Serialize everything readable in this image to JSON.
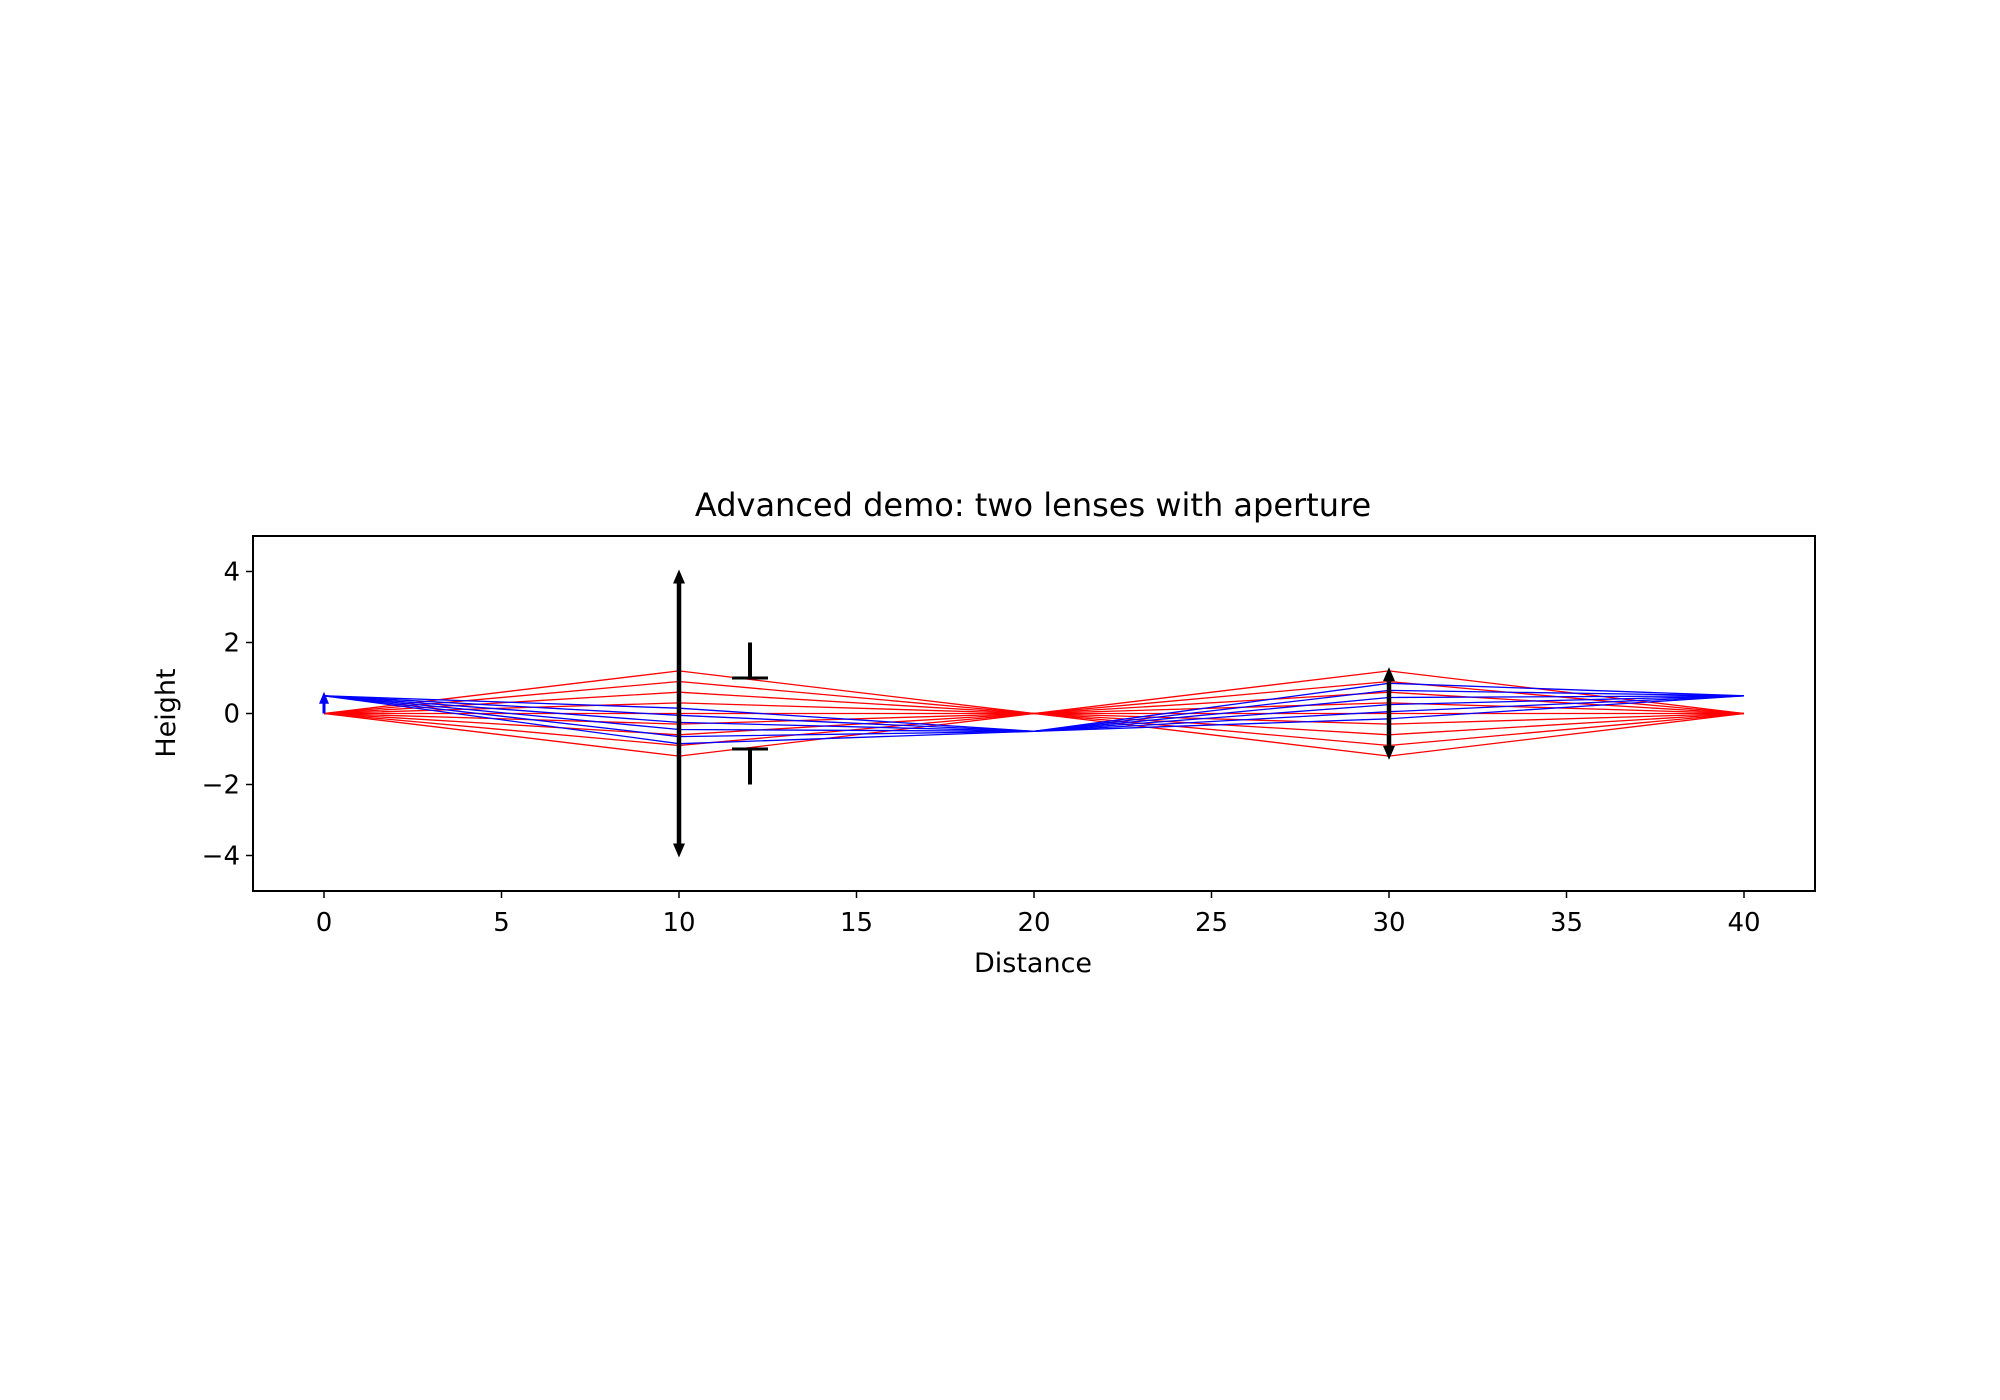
{
  "chart_data": {
    "type": "line",
    "title": "Advanced demo: two lenses with aperture",
    "xlabel": "Distance",
    "ylabel": "Height",
    "xlim": [
      -2,
      42
    ],
    "ylim": [
      -5,
      5
    ],
    "xticks": [
      0,
      5,
      10,
      15,
      20,
      25,
      30,
      35,
      40
    ],
    "yticks": [
      -4,
      -2,
      0,
      2,
      4
    ],
    "grid": false,
    "colors": {
      "axial_rays": "#ff0000",
      "principal_rays": "#0000ff",
      "elements": "#000000"
    },
    "object": {
      "x": 0,
      "height": 0.5
    },
    "lenses": [
      {
        "x": 10,
        "half_height": 4
      },
      {
        "x": 30,
        "half_height": 1.25
      }
    ],
    "aperture": {
      "x": 12,
      "half_diameter": 1,
      "outer_half_height": 2
    },
    "series": [
      {
        "color": "#ff0000",
        "x": [
          0,
          10,
          20,
          30,
          40
        ],
        "rays": [
          [
            0,
            1.2,
            0,
            -1.2,
            0
          ],
          [
            0,
            0.9,
            0,
            -0.9,
            0
          ],
          [
            0,
            0.6,
            0,
            -0.6,
            0
          ],
          [
            0,
            0.3,
            0,
            -0.3,
            0
          ],
          [
            0,
            0.0,
            0,
            0.0,
            0
          ],
          [
            0,
            -0.3,
            0,
            0.3,
            0
          ],
          [
            0,
            -0.6,
            0,
            0.6,
            0
          ],
          [
            0,
            -0.9,
            0,
            0.9,
            0
          ],
          [
            0,
            -1.2,
            0,
            1.2,
            0
          ]
        ]
      },
      {
        "color": "#0000ff",
        "x": [
          0,
          10,
          20,
          30,
          40
        ],
        "rays": [
          [
            0.5,
            0.15,
            -0.5,
            -0.15,
            0.5
          ],
          [
            0.5,
            -0.05,
            -0.5,
            0.05,
            0.5
          ],
          [
            0.5,
            -0.25,
            -0.5,
            0.25,
            0.5
          ],
          [
            0.5,
            -0.45,
            -0.5,
            0.45,
            0.5
          ],
          [
            0.5,
            -0.65,
            -0.5,
            0.65,
            0.5
          ],
          [
            0.5,
            -0.85,
            -0.5,
            0.85,
            0.5
          ]
        ]
      }
    ]
  }
}
